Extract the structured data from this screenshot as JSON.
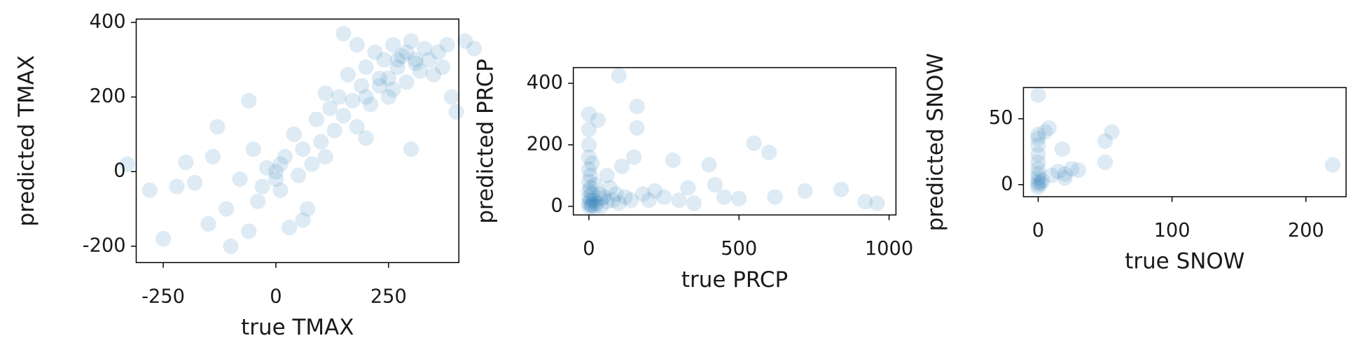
{
  "chart_data": [
    {
      "type": "scatter",
      "xlabel": "true TMAX",
      "ylabel": "predicted TMAX",
      "color": "#1f77b4",
      "xlim": [
        -310,
        406
      ],
      "ylim": [
        -244,
        409
      ],
      "xticks": [
        -250,
        0,
        250
      ],
      "yticks": [
        -200,
        0,
        200,
        400
      ],
      "x": [
        -330,
        -280,
        -250,
        -220,
        -200,
        -180,
        -150,
        -140,
        -130,
        -110,
        -100,
        -80,
        -60,
        -50,
        -40,
        -20,
        0,
        10,
        20,
        30,
        40,
        50,
        60,
        70,
        80,
        90,
        100,
        110,
        120,
        130,
        140,
        150,
        160,
        170,
        180,
        190,
        200,
        210,
        220,
        230,
        240,
        250,
        260,
        270,
        280,
        290,
        300,
        310,
        320,
        330,
        340,
        350,
        360,
        370,
        380,
        390,
        400,
        420,
        440,
        300,
        200,
        150,
        180,
        110,
        -60,
        60,
        0,
        10,
        -30,
        250,
        270,
        290,
        310,
        230,
        260,
        200
      ],
      "y": [
        20,
        -50,
        -180,
        -40,
        25,
        -30,
        -140,
        40,
        120,
        -100,
        -200,
        -20,
        -160,
        60,
        -80,
        10,
        -20,
        -50,
        40,
        -150,
        100,
        -10,
        60,
        -100,
        20,
        140,
        80,
        40,
        170,
        110,
        200,
        150,
        260,
        190,
        120,
        230,
        280,
        180,
        320,
        250,
        300,
        200,
        340,
        280,
        310,
        240,
        350,
        290,
        270,
        330,
        300,
        260,
        320,
        280,
        340,
        200,
        160,
        350,
        330,
        60,
        90,
        370,
        340,
        210,
        190,
        -130,
        0,
        20,
        -40,
        250,
        300,
        320,
        300,
        230,
        220,
        200
      ]
    },
    {
      "type": "scatter",
      "xlabel": "true PRCP",
      "ylabel": "predicted PRCP",
      "color": "#1f77b4",
      "xlim": [
        -52,
        1023
      ],
      "ylim": [
        -28,
        451
      ],
      "xticks": [
        0,
        500,
        1000
      ],
      "yticks": [
        0,
        200,
        400
      ],
      "x": [
        0,
        0,
        0,
        0,
        0,
        0,
        0,
        0,
        0,
        5,
        5,
        5,
        10,
        10,
        10,
        15,
        20,
        25,
        30,
        35,
        40,
        50,
        60,
        70,
        80,
        90,
        100,
        100,
        110,
        120,
        140,
        150,
        160,
        160,
        180,
        200,
        220,
        250,
        280,
        300,
        330,
        350,
        400,
        420,
        450,
        500,
        550,
        600,
        620,
        720,
        840,
        920,
        960,
        60,
        40,
        20,
        0,
        8
      ],
      "y": [
        10,
        30,
        50,
        80,
        120,
        160,
        200,
        250,
        300,
        20,
        60,
        100,
        5,
        40,
        140,
        20,
        70,
        10,
        280,
        40,
        25,
        30,
        15,
        60,
        20,
        40,
        425,
        10,
        130,
        30,
        20,
        160,
        325,
        255,
        40,
        20,
        50,
        30,
        150,
        20,
        60,
        10,
        135,
        70,
        30,
        25,
        205,
        175,
        30,
        50,
        55,
        15,
        10,
        100,
        0,
        0,
        0,
        0
      ]
    },
    {
      "type": "scatter",
      "xlabel": "true SNOW",
      "ylabel": "predicted SNOW",
      "color": "#1f77b4",
      "xlim": [
        -11,
        230
      ],
      "ylim": [
        -9.2,
        73.7
      ],
      "xticks": [
        0,
        100,
        200
      ],
      "yticks": [
        0,
        50
      ],
      "x": [
        0,
        0,
        0,
        0,
        0,
        0,
        0,
        0,
        0,
        0,
        0,
        0,
        2,
        5,
        8,
        15,
        18,
        20,
        20,
        30,
        50,
        50,
        55,
        220,
        3,
        10,
        25
      ],
      "y": [
        0,
        2,
        5,
        8,
        12,
        17,
        23,
        30,
        35,
        38,
        68,
        -2,
        1,
        40,
        43,
        10,
        27,
        5,
        8,
        11,
        17,
        33,
        40,
        15,
        3,
        7,
        12
      ]
    }
  ]
}
